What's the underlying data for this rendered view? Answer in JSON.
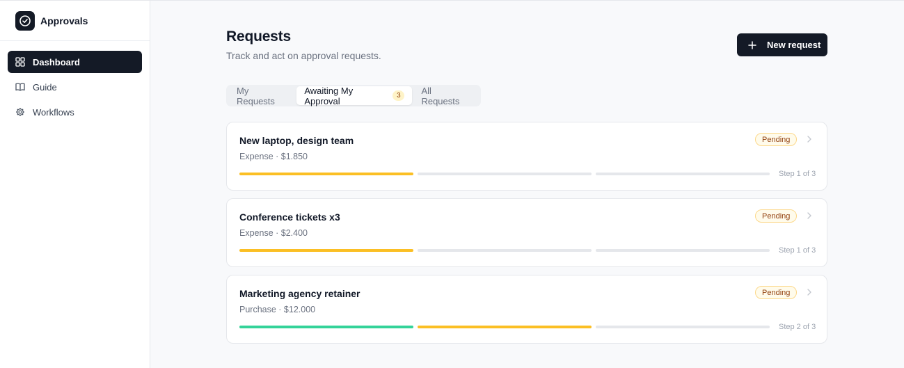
{
  "app": {
    "name": "Approvals",
    "logo_icon": "check-circle-icon"
  },
  "sidebar": {
    "items": [
      {
        "label": "Dashboard",
        "icon": "grid-icon",
        "active": true
      },
      {
        "label": "Guide",
        "icon": "book-icon",
        "active": false
      },
      {
        "label": "Workflows",
        "icon": "gear-icon",
        "active": false
      }
    ]
  },
  "header": {
    "title": "Requests",
    "subtitle": "Track and act on approval requests.",
    "new_button_label": "New request"
  },
  "tabs": [
    {
      "label": "My Requests",
      "active": false
    },
    {
      "label": "Awaiting My Approval",
      "active": true,
      "badge": "3"
    },
    {
      "label": "All Requests",
      "active": false
    }
  ],
  "requests": [
    {
      "title": "New laptop, design team",
      "meta": "Expense · $1.850",
      "status": "Pending",
      "step_label": "Step 1 of 3",
      "steps": [
        "current",
        "pending",
        "pending"
      ]
    },
    {
      "title": "Conference tickets x3",
      "meta": "Expense · $2.400",
      "status": "Pending",
      "step_label": "Step 1 of 3",
      "steps": [
        "current",
        "pending",
        "pending"
      ]
    },
    {
      "title": "Marketing agency retainer",
      "meta": "Purchase · $12.000",
      "status": "Pending",
      "step_label": "Step 2 of 3",
      "steps": [
        "done",
        "current",
        "pending"
      ]
    }
  ],
  "colors": {
    "accent_dark": "#141a26",
    "step_done": "#34d399",
    "step_current": "#fbbf24",
    "step_pending": "#e5e7eb"
  }
}
